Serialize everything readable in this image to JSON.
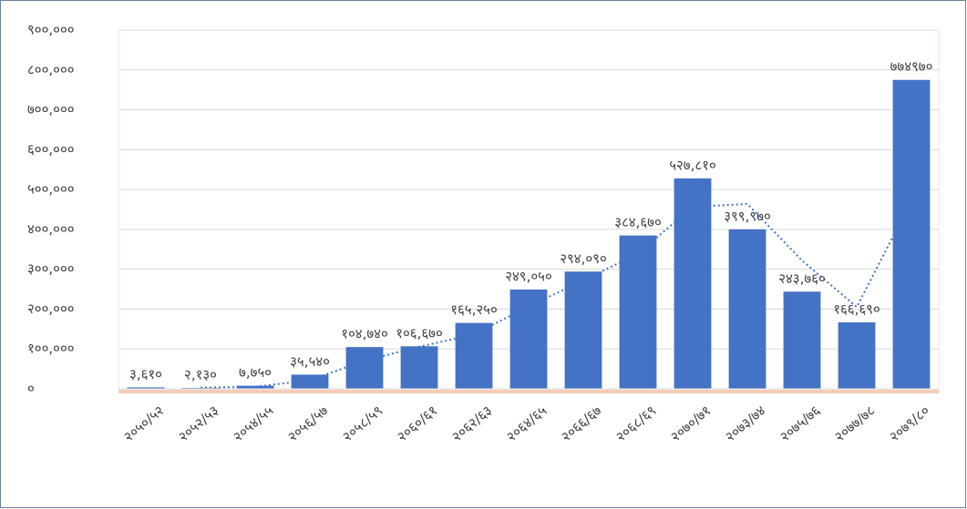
{
  "chart_data": {
    "type": "bar",
    "categories": [
      "२०५०/५२",
      "२०५२/५३",
      "२०५४/५५",
      "२०५६/५७",
      "२०५८/५९",
      "२०६०/६१",
      "२०६२/६३",
      "२०६४/६५",
      "२०६६/६७",
      "२०६८/६९",
      "२०७०/७१",
      "२०७३/७४",
      "२०७५/७६",
      "२०७७/७८",
      "२०७९/८०"
    ],
    "values": [
      3610,
      2130,
      7750,
      35540,
      104740,
      106670,
      165250,
      249050,
      294090,
      384670,
      527810,
      399970,
      243760,
      166690,
      774970
    ],
    "value_labels": [
      "३,६१०",
      "२,१३०",
      "७,७५०",
      "३५,५४०",
      "१०४,७४०",
      "१०६,६७०",
      "१६५,२५०",
      "२४९,०५०",
      "२९४,०९०",
      "३८४,६७०",
      "५२७,८१०",
      "३९९,९७०",
      "२४३,७६०",
      "१६६,६९०",
      "७७४९७०"
    ],
    "color": "#4472c4",
    "trendline": {
      "type": "moving_average",
      "period": 2,
      "color": "#4472c4"
    },
    "ylim": [
      0,
      900000
    ],
    "yticks": [
      {
        "value": 0,
        "label": "०"
      },
      {
        "value": 100000,
        "label": "१००,०००"
      },
      {
        "value": 200000,
        "label": "२००,०००"
      },
      {
        "value": 300000,
        "label": "३००,०००"
      },
      {
        "value": 400000,
        "label": "४००,०००"
      },
      {
        "value": 500000,
        "label": "५००,०००"
      },
      {
        "value": 600000,
        "label": "६००,०००"
      },
      {
        "value": 700000,
        "label": "७००,०००"
      },
      {
        "value": 800000,
        "label": "८००,०००"
      },
      {
        "value": 900000,
        "label": "९००,०००"
      }
    ],
    "grid": true
  }
}
